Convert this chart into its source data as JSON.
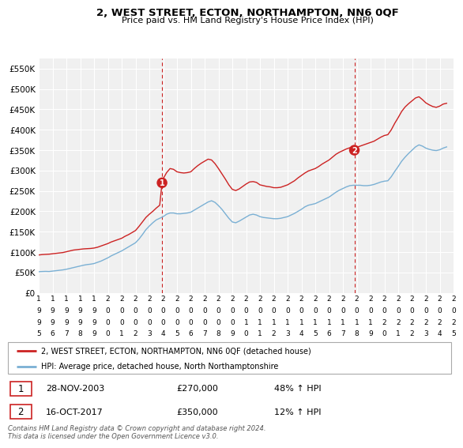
{
  "title": "2, WEST STREET, ECTON, NORTHAMPTON, NN6 0QF",
  "subtitle": "Price paid vs. HM Land Registry's House Price Index (HPI)",
  "hpi_color": "#7ab0d4",
  "price_color": "#cc2222",
  "background_color": "#f0f0f0",
  "plot_bg": "#f0f0f0",
  "grid_color": "#ffffff",
  "ylim": [
    0,
    575000
  ],
  "yticks": [
    0,
    50000,
    100000,
    150000,
    200000,
    250000,
    300000,
    350000,
    400000,
    450000,
    500000,
    550000
  ],
  "ytick_labels": [
    "£0",
    "£50K",
    "£100K",
    "£150K",
    "£200K",
    "£250K",
    "£300K",
    "£350K",
    "£400K",
    "£450K",
    "£500K",
    "£550K"
  ],
  "transaction1_date": "28-NOV-2003",
  "transaction1_price": 270000,
  "transaction1_label": "48% ↑ HPI",
  "transaction2_date": "16-OCT-2017",
  "transaction2_price": 350000,
  "transaction2_label": "12% ↑ HPI",
  "legend_line1": "2, WEST STREET, ECTON, NORTHAMPTON, NN6 0QF (detached house)",
  "legend_line2": "HPI: Average price, detached house, North Northamptonshire",
  "footnote": "Contains HM Land Registry data © Crown copyright and database right 2024.\nThis data is licensed under the Open Government Licence v3.0.",
  "hpi_data": [
    [
      1995.0,
      52000
    ],
    [
      1995.25,
      52500
    ],
    [
      1995.5,
      52800
    ],
    [
      1995.75,
      52500
    ],
    [
      1996.0,
      53500
    ],
    [
      1996.25,
      54500
    ],
    [
      1996.5,
      55500
    ],
    [
      1996.75,
      56500
    ],
    [
      1997.0,
      58000
    ],
    [
      1997.25,
      60000
    ],
    [
      1997.5,
      62000
    ],
    [
      1997.75,
      64000
    ],
    [
      1998.0,
      66000
    ],
    [
      1998.25,
      68000
    ],
    [
      1998.5,
      69500
    ],
    [
      1998.75,
      70500
    ],
    [
      1999.0,
      72000
    ],
    [
      1999.25,
      75000
    ],
    [
      1999.5,
      78000
    ],
    [
      1999.75,
      82000
    ],
    [
      2000.0,
      86000
    ],
    [
      2000.25,
      91000
    ],
    [
      2000.5,
      95000
    ],
    [
      2000.75,
      99000
    ],
    [
      2001.0,
      103000
    ],
    [
      2001.25,
      108000
    ],
    [
      2001.5,
      113000
    ],
    [
      2001.75,
      118000
    ],
    [
      2002.0,
      123000
    ],
    [
      2002.25,
      132000
    ],
    [
      2002.5,
      143000
    ],
    [
      2002.75,
      155000
    ],
    [
      2003.0,
      164000
    ],
    [
      2003.25,
      172000
    ],
    [
      2003.5,
      179000
    ],
    [
      2003.75,
      183000
    ],
    [
      2004.0,
      187000
    ],
    [
      2004.25,
      193000
    ],
    [
      2004.5,
      196000
    ],
    [
      2004.75,
      196000
    ],
    [
      2005.0,
      194000
    ],
    [
      2005.25,
      194000
    ],
    [
      2005.5,
      195000
    ],
    [
      2005.75,
      196000
    ],
    [
      2006.0,
      198000
    ],
    [
      2006.25,
      203000
    ],
    [
      2006.5,
      208000
    ],
    [
      2006.75,
      213000
    ],
    [
      2007.0,
      218000
    ],
    [
      2007.25,
      223000
    ],
    [
      2007.5,
      226000
    ],
    [
      2007.75,
      222000
    ],
    [
      2008.0,
      214000
    ],
    [
      2008.25,
      205000
    ],
    [
      2008.5,
      194000
    ],
    [
      2008.75,
      183000
    ],
    [
      2009.0,
      174000
    ],
    [
      2009.25,
      172000
    ],
    [
      2009.5,
      176000
    ],
    [
      2009.75,
      181000
    ],
    [
      2010.0,
      186000
    ],
    [
      2010.25,
      191000
    ],
    [
      2010.5,
      193000
    ],
    [
      2010.75,
      191000
    ],
    [
      2011.0,
      187000
    ],
    [
      2011.25,
      185000
    ],
    [
      2011.5,
      184000
    ],
    [
      2011.75,
      183000
    ],
    [
      2012.0,
      182000
    ],
    [
      2012.25,
      182000
    ],
    [
      2012.5,
      183000
    ],
    [
      2012.75,
      185000
    ],
    [
      2013.0,
      187000
    ],
    [
      2013.25,
      191000
    ],
    [
      2013.5,
      195000
    ],
    [
      2013.75,
      200000
    ],
    [
      2014.0,
      205000
    ],
    [
      2014.25,
      211000
    ],
    [
      2014.5,
      215000
    ],
    [
      2014.75,
      217000
    ],
    [
      2015.0,
      219000
    ],
    [
      2015.25,
      223000
    ],
    [
      2015.5,
      227000
    ],
    [
      2015.75,
      231000
    ],
    [
      2016.0,
      235000
    ],
    [
      2016.25,
      241000
    ],
    [
      2016.5,
      247000
    ],
    [
      2016.75,
      252000
    ],
    [
      2017.0,
      256000
    ],
    [
      2017.25,
      260000
    ],
    [
      2017.5,
      263000
    ],
    [
      2017.75,
      264000
    ],
    [
      2018.0,
      264000
    ],
    [
      2018.25,
      264000
    ],
    [
      2018.5,
      263000
    ],
    [
      2018.75,
      263000
    ],
    [
      2019.0,
      264000
    ],
    [
      2019.25,
      266000
    ],
    [
      2019.5,
      269000
    ],
    [
      2019.75,
      272000
    ],
    [
      2020.0,
      274000
    ],
    [
      2020.25,
      275000
    ],
    [
      2020.5,
      285000
    ],
    [
      2020.75,
      298000
    ],
    [
      2021.0,
      310000
    ],
    [
      2021.25,
      323000
    ],
    [
      2021.5,
      333000
    ],
    [
      2021.75,
      342000
    ],
    [
      2022.0,
      350000
    ],
    [
      2022.25,
      358000
    ],
    [
      2022.5,
      363000
    ],
    [
      2022.75,
      360000
    ],
    [
      2023.0,
      355000
    ],
    [
      2023.25,
      352000
    ],
    [
      2023.5,
      350000
    ],
    [
      2023.75,
      349000
    ],
    [
      2024.0,
      351000
    ],
    [
      2024.25,
      355000
    ],
    [
      2024.5,
      358000
    ]
  ],
  "price_data": [
    [
      1995.0,
      93000
    ],
    [
      1995.25,
      94000
    ],
    [
      1995.5,
      94500
    ],
    [
      1995.75,
      95000
    ],
    [
      1996.0,
      96000
    ],
    [
      1996.25,
      97000
    ],
    [
      1996.5,
      98000
    ],
    [
      1996.75,
      99000
    ],
    [
      1997.0,
      101000
    ],
    [
      1997.25,
      103000
    ],
    [
      1997.5,
      105000
    ],
    [
      1997.75,
      106000
    ],
    [
      1998.0,
      107000
    ],
    [
      1998.25,
      108000
    ],
    [
      1998.5,
      108500
    ],
    [
      1998.75,
      109000
    ],
    [
      1999.0,
      110000
    ],
    [
      1999.25,
      112000
    ],
    [
      1999.5,
      115000
    ],
    [
      1999.75,
      118000
    ],
    [
      2000.0,
      121000
    ],
    [
      2000.25,
      125000
    ],
    [
      2000.5,
      128000
    ],
    [
      2000.75,
      131000
    ],
    [
      2001.0,
      134000
    ],
    [
      2001.25,
      139000
    ],
    [
      2001.5,
      143000
    ],
    [
      2001.75,
      148000
    ],
    [
      2002.0,
      153000
    ],
    [
      2002.25,
      163000
    ],
    [
      2002.5,
      174000
    ],
    [
      2002.75,
      185000
    ],
    [
      2003.0,
      193000
    ],
    [
      2003.25,
      200000
    ],
    [
      2003.5,
      208000
    ],
    [
      2003.75,
      215000
    ],
    [
      2003.92,
      270000
    ],
    [
      2004.0,
      280000
    ],
    [
      2004.25,
      295000
    ],
    [
      2004.5,
      305000
    ],
    [
      2004.75,
      303000
    ],
    [
      2005.0,
      297000
    ],
    [
      2005.25,
      295000
    ],
    [
      2005.5,
      294000
    ],
    [
      2005.75,
      295000
    ],
    [
      2006.0,
      297000
    ],
    [
      2006.25,
      305000
    ],
    [
      2006.5,
      312000
    ],
    [
      2006.75,
      318000
    ],
    [
      2007.0,
      323000
    ],
    [
      2007.25,
      328000
    ],
    [
      2007.5,
      326000
    ],
    [
      2007.75,
      317000
    ],
    [
      2008.0,
      305000
    ],
    [
      2008.25,
      292000
    ],
    [
      2008.5,
      279000
    ],
    [
      2008.75,
      265000
    ],
    [
      2009.0,
      254000
    ],
    [
      2009.25,
      251000
    ],
    [
      2009.5,
      255000
    ],
    [
      2009.75,
      261000
    ],
    [
      2010.0,
      267000
    ],
    [
      2010.25,
      272000
    ],
    [
      2010.5,
      273000
    ],
    [
      2010.75,
      271000
    ],
    [
      2011.0,
      265000
    ],
    [
      2011.25,
      263000
    ],
    [
      2011.5,
      261000
    ],
    [
      2011.75,
      260000
    ],
    [
      2012.0,
      258000
    ],
    [
      2012.25,
      258000
    ],
    [
      2012.5,
      259000
    ],
    [
      2012.75,
      262000
    ],
    [
      2013.0,
      265000
    ],
    [
      2013.25,
      270000
    ],
    [
      2013.5,
      275000
    ],
    [
      2013.75,
      282000
    ],
    [
      2014.0,
      288000
    ],
    [
      2014.25,
      294000
    ],
    [
      2014.5,
      299000
    ],
    [
      2014.75,
      302000
    ],
    [
      2015.0,
      305000
    ],
    [
      2015.25,
      310000
    ],
    [
      2015.5,
      316000
    ],
    [
      2015.75,
      321000
    ],
    [
      2016.0,
      326000
    ],
    [
      2016.25,
      333000
    ],
    [
      2016.5,
      340000
    ],
    [
      2016.75,
      345000
    ],
    [
      2017.0,
      349000
    ],
    [
      2017.25,
      353000
    ],
    [
      2017.5,
      356000
    ],
    [
      2017.75,
      357000
    ],
    [
      2017.83,
      350000
    ],
    [
      2018.0,
      357000
    ],
    [
      2018.25,
      360000
    ],
    [
      2018.5,
      363000
    ],
    [
      2018.75,
      366000
    ],
    [
      2019.0,
      369000
    ],
    [
      2019.25,
      372000
    ],
    [
      2019.5,
      377000
    ],
    [
      2019.75,
      382000
    ],
    [
      2020.0,
      386000
    ],
    [
      2020.25,
      388000
    ],
    [
      2020.5,
      400000
    ],
    [
      2020.75,
      416000
    ],
    [
      2021.0,
      430000
    ],
    [
      2021.25,
      445000
    ],
    [
      2021.5,
      456000
    ],
    [
      2021.75,
      464000
    ],
    [
      2022.0,
      471000
    ],
    [
      2022.25,
      478000
    ],
    [
      2022.5,
      481000
    ],
    [
      2022.75,
      474000
    ],
    [
      2023.0,
      466000
    ],
    [
      2023.25,
      461000
    ],
    [
      2023.5,
      457000
    ],
    [
      2023.75,
      455000
    ],
    [
      2024.0,
      458000
    ],
    [
      2024.25,
      463000
    ],
    [
      2024.5,
      465000
    ]
  ],
  "transaction1_x": 2003.92,
  "transaction1_y": 270000,
  "transaction2_x": 2017.83,
  "transaction2_y": 350000,
  "vline1_x": 2003.92,
  "vline2_x": 2017.83,
  "xlim": [
    1995,
    2025
  ],
  "xticks": [
    1995,
    1996,
    1997,
    1998,
    1999,
    2000,
    2001,
    2002,
    2003,
    2004,
    2005,
    2006,
    2007,
    2008,
    2009,
    2010,
    2011,
    2012,
    2013,
    2014,
    2015,
    2016,
    2017,
    2018,
    2019,
    2020,
    2021,
    2022,
    2023,
    2024,
    2025
  ]
}
